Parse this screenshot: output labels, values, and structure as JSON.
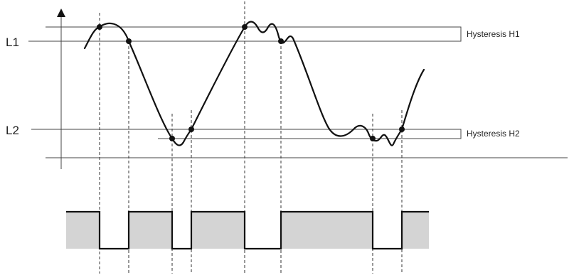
{
  "levels": {
    "l1": {
      "label": "L1"
    },
    "l2": {
      "label": "L2"
    }
  },
  "hysteresis": {
    "h1": {
      "label": "Hysteresis H1"
    },
    "h2": {
      "label": "Hysteresis H2"
    }
  },
  "colors": {
    "line": "#111111",
    "guide": "#444444",
    "output_fill": "#d4d4d4"
  }
}
